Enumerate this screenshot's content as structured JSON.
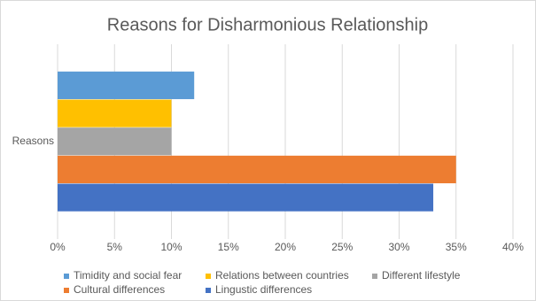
{
  "chart_data": {
    "type": "bar",
    "orientation": "horizontal",
    "title": "Reasons for Disharmonious Relationship",
    "categories": [
      "Reasons"
    ],
    "series": [
      {
        "name": "Timidity and social fear",
        "color": "#5b9bd5",
        "values": [
          12
        ]
      },
      {
        "name": "Relations between countries",
        "color": "#ffc000",
        "values": [
          10
        ]
      },
      {
        "name": "Different lifestyle",
        "color": "#a5a5a5",
        "values": [
          10
        ]
      },
      {
        "name": "Cultural differences",
        "color": "#ed7d31",
        "values": [
          35
        ]
      },
      {
        "name": "Lingustic differences",
        "color": "#4472c4",
        "values": [
          33
        ]
      }
    ],
    "xlim": [
      0,
      40
    ],
    "xticks": [
      {
        "value": 0,
        "label": "0%"
      },
      {
        "value": 5,
        "label": "5%"
      },
      {
        "value": 10,
        "label": "10%"
      },
      {
        "value": 15,
        "label": "15%"
      },
      {
        "value": 20,
        "label": "20%"
      },
      {
        "value": 25,
        "label": "25%"
      },
      {
        "value": 30,
        "label": "30%"
      },
      {
        "value": 35,
        "label": "35%"
      },
      {
        "value": 40,
        "label": "40%"
      }
    ],
    "grid": true,
    "legend": "bottom"
  }
}
